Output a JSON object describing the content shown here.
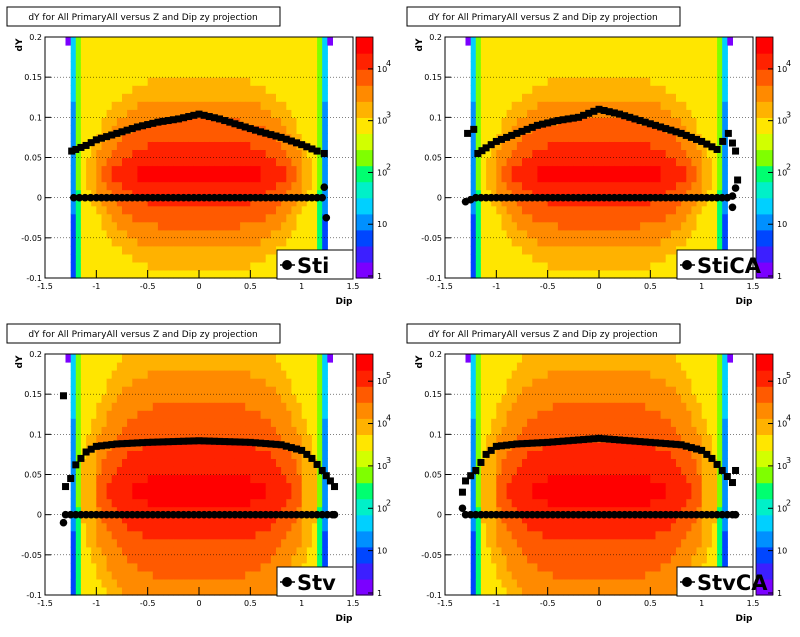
{
  "footer": "",
  "chart_data": [
    {
      "type": "heatmap",
      "title": "dY for All PrimaryAll versus Z and Dip zy projection",
      "xlabel": "Dip",
      "ylabel": "dY",
      "xlim": [
        -1.5,
        1.5
      ],
      "ylim": [
        -0.1,
        0.2
      ],
      "x_ticks": [
        "-1.5",
        "-1",
        "-0.5",
        "0",
        "0.5",
        "1",
        "1.5"
      ],
      "y_ticks": [
        "-0.1",
        "-0.05",
        "0",
        "0.05",
        "0.1",
        "0.15",
        "0.2"
      ],
      "color_scale": "log",
      "colorbar_ticks": [
        "1",
        "10",
        "10^2",
        "10^3",
        "10^4"
      ],
      "legend": "Sti",
      "series": [
        {
          "values": [
            [
              -1.24,
              0.058
            ],
            [
              -1.2,
              0.06
            ],
            [
              -1.1,
              0.065
            ],
            [
              -1.0,
              0.072
            ],
            [
              -0.8,
              0.08
            ],
            [
              -0.6,
              0.088
            ],
            [
              -0.4,
              0.094
            ],
            [
              -0.2,
              0.098
            ],
            [
              0.0,
              0.104
            ],
            [
              0.2,
              0.098
            ],
            [
              0.4,
              0.09
            ],
            [
              0.6,
              0.082
            ],
            [
              0.8,
              0.075
            ],
            [
              1.0,
              0.066
            ],
            [
              1.15,
              0.058
            ],
            [
              1.22,
              0.055
            ]
          ]
        },
        {
          "values": [
            [
              -1.22,
              0.0
            ],
            [
              -1.0,
              0.0
            ],
            [
              -0.5,
              0.0
            ],
            [
              0.0,
              0.0
            ],
            [
              0.5,
              0.0
            ],
            [
              1.0,
              0.0
            ],
            [
              1.2,
              0.0
            ],
            [
              1.22,
              0.013
            ],
            [
              1.24,
              -0.025
            ]
          ]
        }
      ]
    },
    {
      "type": "heatmap",
      "title": "dY for All PrimaryAll versus Z and Dip zy projection",
      "xlabel": "Dip",
      "ylabel": "dY",
      "xlim": [
        -1.5,
        1.5
      ],
      "ylim": [
        -0.1,
        0.2
      ],
      "x_ticks": [
        "-1.5",
        "-1",
        "-0.5",
        "0",
        "0.5",
        "1",
        "1.5"
      ],
      "y_ticks": [
        "-0.1",
        "-0.05",
        "0",
        "0.05",
        "0.1",
        "0.15",
        "0.2"
      ],
      "color_scale": "log",
      "colorbar_ticks": [
        "1",
        "10",
        "10^2",
        "10^3",
        "10^4"
      ],
      "legend": "StiCA",
      "series": [
        {
          "values": [
            [
              -1.28,
              0.08
            ],
            [
              -1.22,
              0.085
            ],
            [
              -1.18,
              0.055
            ],
            [
              -1.1,
              0.062
            ],
            [
              -1.0,
              0.07
            ],
            [
              -0.8,
              0.08
            ],
            [
              -0.6,
              0.09
            ],
            [
              -0.4,
              0.096
            ],
            [
              -0.2,
              0.1
            ],
            [
              0.0,
              0.11
            ],
            [
              0.2,
              0.104
            ],
            [
              0.4,
              0.096
            ],
            [
              0.6,
              0.088
            ],
            [
              0.8,
              0.08
            ],
            [
              1.0,
              0.07
            ],
            [
              1.15,
              0.06
            ],
            [
              1.26,
              0.08
            ],
            [
              1.3,
              0.068
            ],
            [
              1.33,
              0.058
            ],
            [
              1.35,
              0.022
            ]
          ]
        },
        {
          "values": [
            [
              -1.3,
              -0.005
            ],
            [
              -1.2,
              0.0
            ],
            [
              -1.0,
              0.0
            ],
            [
              -0.5,
              0.0
            ],
            [
              0.0,
              0.0
            ],
            [
              0.5,
              0.0
            ],
            [
              1.0,
              0.0
            ],
            [
              1.25,
              0.0
            ],
            [
              1.3,
              0.002
            ],
            [
              1.33,
              0.012
            ],
            [
              1.3,
              -0.012
            ]
          ]
        }
      ]
    },
    {
      "type": "heatmap",
      "title": "dY for All PrimaryAll versus Z and Dip zy projection",
      "xlabel": "Dip",
      "ylabel": "dY",
      "xlim": [
        -1.5,
        1.5
      ],
      "ylim": [
        -0.1,
        0.2
      ],
      "x_ticks": [
        "-1.5",
        "-1",
        "-0.5",
        "0",
        "0.5",
        "1",
        "1.5"
      ],
      "y_ticks": [
        "-0.1",
        "-0.05",
        "0",
        "0.05",
        "0.1",
        "0.15",
        "0.2"
      ],
      "color_scale": "log",
      "colorbar_ticks": [
        "1",
        "10",
        "10^2",
        "10^3",
        "10^4",
        "10^5"
      ],
      "legend": "Stv",
      "series": [
        {
          "values": [
            [
              -1.32,
              0.148
            ],
            [
              -1.3,
              0.035
            ],
            [
              -1.25,
              0.045
            ],
            [
              -1.2,
              0.062
            ],
            [
              -1.1,
              0.078
            ],
            [
              -1.0,
              0.085
            ],
            [
              -0.8,
              0.088
            ],
            [
              -0.5,
              0.09
            ],
            [
              0.0,
              0.092
            ],
            [
              0.5,
              0.09
            ],
            [
              0.8,
              0.087
            ],
            [
              1.0,
              0.08
            ],
            [
              1.1,
              0.07
            ],
            [
              1.2,
              0.055
            ],
            [
              1.28,
              0.042
            ],
            [
              1.32,
              0.035
            ]
          ]
        },
        {
          "values": [
            [
              -1.32,
              -0.01
            ],
            [
              -1.3,
              0.0
            ],
            [
              -1.0,
              0.0
            ],
            [
              -0.5,
              0.0
            ],
            [
              0.0,
              0.0
            ],
            [
              0.5,
              0.0
            ],
            [
              1.0,
              0.0
            ],
            [
              1.3,
              0.0
            ],
            [
              1.32,
              0.0
            ]
          ]
        }
      ]
    },
    {
      "type": "heatmap",
      "title": "dY for All PrimaryAll versus Z and Dip zy projection",
      "xlabel": "Dip",
      "ylabel": "dY",
      "xlim": [
        -1.5,
        1.5
      ],
      "ylim": [
        -0.1,
        0.2
      ],
      "x_ticks": [
        "-1.5",
        "-1",
        "-0.5",
        "0",
        "0.5",
        "1",
        "1.5"
      ],
      "y_ticks": [
        "-0.1",
        "-0.05",
        "0",
        "0.05",
        "0.1",
        "0.15",
        "0.2"
      ],
      "color_scale": "log",
      "colorbar_ticks": [
        "1",
        "10",
        "10^2",
        "10^3",
        "10^4",
        "10^5"
      ],
      "legend": "StvCA",
      "series": [
        {
          "values": [
            [
              -1.33,
              0.028
            ],
            [
              -1.3,
              0.042
            ],
            [
              -1.2,
              0.055
            ],
            [
              -1.1,
              0.075
            ],
            [
              -1.0,
              0.085
            ],
            [
              -0.8,
              0.088
            ],
            [
              -0.5,
              0.09
            ],
            [
              0.0,
              0.095
            ],
            [
              0.5,
              0.09
            ],
            [
              0.8,
              0.087
            ],
            [
              1.0,
              0.08
            ],
            [
              1.1,
              0.07
            ],
            [
              1.2,
              0.055
            ],
            [
              1.3,
              0.04
            ],
            [
              1.33,
              0.055
            ]
          ]
        },
        {
          "values": [
            [
              -1.33,
              0.008
            ],
            [
              -1.3,
              0.0
            ],
            [
              -1.0,
              0.0
            ],
            [
              -0.5,
              0.0
            ],
            [
              0.0,
              0.0
            ],
            [
              0.5,
              0.0
            ],
            [
              1.0,
              0.0
            ],
            [
              1.3,
              0.0
            ],
            [
              1.33,
              0.0
            ]
          ]
        }
      ]
    }
  ]
}
